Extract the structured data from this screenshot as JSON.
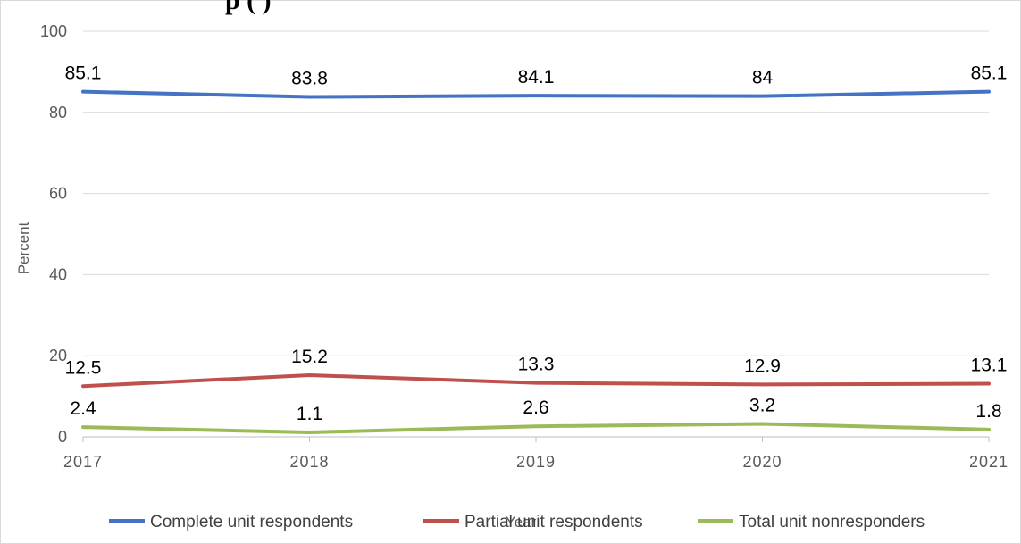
{
  "chart_data": {
    "type": "line",
    "title": "",
    "title_visible_fragment": "p                              (          )",
    "xlabel": "Year",
    "ylabel": "Percent",
    "ylim": [
      0,
      100
    ],
    "yticks": [
      0,
      20,
      40,
      60,
      80,
      100
    ],
    "categories": [
      "2017",
      "2018",
      "2019",
      "2020",
      "2021"
    ],
    "grid": true,
    "legend_position": "bottom",
    "series": [
      {
        "name": "Complete unit respondents",
        "color": "#4472c4",
        "values": [
          85.1,
          83.8,
          84.1,
          84,
          85.1
        ],
        "labels": [
          "85.1",
          "83.8",
          "84.1",
          "84",
          "85.1"
        ]
      },
      {
        "name": "Partial unit respondents",
        "color": "#c0504d",
        "values": [
          12.5,
          15.2,
          13.3,
          12.9,
          13.1
        ],
        "labels": [
          "12.5",
          "15.2",
          "13.3",
          "12.9",
          "13.1"
        ]
      },
      {
        "name": "Total unit nonresponders",
        "color": "#9bbb59",
        "values": [
          2.4,
          1.1,
          2.6,
          3.2,
          1.8
        ],
        "labels": [
          "2.4",
          "1.1",
          "2.6",
          "3.2",
          "1.8"
        ]
      }
    ]
  }
}
